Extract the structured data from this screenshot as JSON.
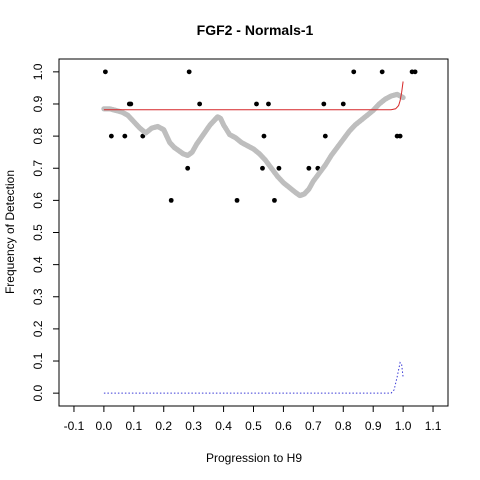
{
  "chart_data": {
    "type": "scatter",
    "title": "FGF2 - Normals-1",
    "xlabel": "Progression to H9",
    "ylabel": "Frequency of Detection",
    "xlim": [
      -0.15,
      1.15
    ],
    "ylim": [
      -0.04,
      1.04
    ],
    "xticks": [
      "-0.1",
      "0.0",
      "0.1",
      "0.2",
      "0.3",
      "0.4",
      "0.5",
      "0.6",
      "0.7",
      "0.8",
      "0.9",
      "1.0",
      "1.1"
    ],
    "yticks": [
      "0.0",
      "0.1",
      "0.2",
      "0.3",
      "0.4",
      "0.5",
      "0.6",
      "0.7",
      "0.8",
      "0.9",
      "1.0"
    ],
    "grid": false,
    "series": [
      {
        "style": "black-points",
        "color": "#000000",
        "points": [
          [
            0.005,
            1.0
          ],
          [
            0.025,
            0.8
          ],
          [
            0.07,
            0.8
          ],
          [
            0.085,
            0.9
          ],
          [
            0.09,
            0.9
          ],
          [
            0.13,
            0.8
          ],
          [
            0.225,
            0.6
          ],
          [
            0.28,
            0.7
          ],
          [
            0.285,
            1.0
          ],
          [
            0.32,
            0.9
          ],
          [
            0.445,
            0.6
          ],
          [
            0.51,
            0.9
          ],
          [
            0.53,
            0.7
          ],
          [
            0.535,
            0.8
          ],
          [
            0.55,
            0.9
          ],
          [
            0.57,
            0.6
          ],
          [
            0.585,
            0.7
          ],
          [
            0.685,
            0.7
          ],
          [
            0.715,
            0.7
          ],
          [
            0.735,
            0.9
          ],
          [
            0.74,
            0.8
          ],
          [
            0.8,
            0.9
          ],
          [
            0.835,
            1.0
          ],
          [
            0.93,
            1.0
          ],
          [
            0.98,
            0.8
          ],
          [
            0.99,
            0.8
          ],
          [
            1.03,
            1.0
          ],
          [
            1.04,
            1.0
          ]
        ]
      },
      {
        "style": "grey-points",
        "color": "#bebebe",
        "points": [
          [
            0.0,
            0.885
          ],
          [
            0.02,
            0.885
          ],
          [
            0.04,
            0.88
          ],
          [
            0.06,
            0.875
          ],
          [
            0.08,
            0.865
          ],
          [
            0.1,
            0.845
          ],
          [
            0.12,
            0.825
          ],
          [
            0.14,
            0.81
          ],
          [
            0.16,
            0.825
          ],
          [
            0.18,
            0.83
          ],
          [
            0.2,
            0.82
          ],
          [
            0.21,
            0.8
          ],
          [
            0.22,
            0.78
          ],
          [
            0.235,
            0.765
          ],
          [
            0.25,
            0.755
          ],
          [
            0.265,
            0.745
          ],
          [
            0.28,
            0.74
          ],
          [
            0.295,
            0.75
          ],
          [
            0.31,
            0.775
          ],
          [
            0.325,
            0.795
          ],
          [
            0.34,
            0.815
          ],
          [
            0.355,
            0.835
          ],
          [
            0.37,
            0.85
          ],
          [
            0.38,
            0.86
          ],
          [
            0.39,
            0.855
          ],
          [
            0.4,
            0.835
          ],
          [
            0.42,
            0.805
          ],
          [
            0.44,
            0.795
          ],
          [
            0.46,
            0.78
          ],
          [
            0.48,
            0.77
          ],
          [
            0.5,
            0.76
          ],
          [
            0.52,
            0.745
          ],
          [
            0.54,
            0.725
          ],
          [
            0.56,
            0.7
          ],
          [
            0.58,
            0.675
          ],
          [
            0.6,
            0.655
          ],
          [
            0.62,
            0.64
          ],
          [
            0.64,
            0.625
          ],
          [
            0.655,
            0.615
          ],
          [
            0.67,
            0.62
          ],
          [
            0.685,
            0.635
          ],
          [
            0.7,
            0.66
          ],
          [
            0.72,
            0.685
          ],
          [
            0.74,
            0.71
          ],
          [
            0.76,
            0.74
          ],
          [
            0.78,
            0.765
          ],
          [
            0.8,
            0.79
          ],
          [
            0.82,
            0.815
          ],
          [
            0.84,
            0.835
          ],
          [
            0.86,
            0.85
          ],
          [
            0.88,
            0.865
          ],
          [
            0.9,
            0.88
          ],
          [
            0.92,
            0.9
          ],
          [
            0.94,
            0.915
          ],
          [
            0.96,
            0.925
          ],
          [
            0.98,
            0.93
          ],
          [
            1.0,
            0.92
          ]
        ]
      },
      {
        "style": "red-line",
        "color": "#d62728",
        "points": [
          [
            0.0,
            0.882
          ],
          [
            0.3,
            0.882
          ],
          [
            0.6,
            0.882
          ],
          [
            0.9,
            0.882
          ],
          [
            0.96,
            0.882
          ],
          [
            0.975,
            0.885
          ],
          [
            0.985,
            0.895
          ],
          [
            0.99,
            0.91
          ],
          [
            0.995,
            0.935
          ],
          [
            1.0,
            0.97
          ]
        ]
      },
      {
        "style": "blue-dotted-line",
        "color": "#3a3ad6",
        "points": [
          [
            0.0,
            0.0
          ],
          [
            0.3,
            0.0
          ],
          [
            0.6,
            0.0
          ],
          [
            0.9,
            0.0
          ],
          [
            0.96,
            0.0
          ],
          [
            0.97,
            0.01
          ],
          [
            0.98,
            0.05
          ],
          [
            0.99,
            0.095
          ],
          [
            0.995,
            0.09
          ],
          [
            1.0,
            0.05
          ]
        ]
      }
    ]
  }
}
